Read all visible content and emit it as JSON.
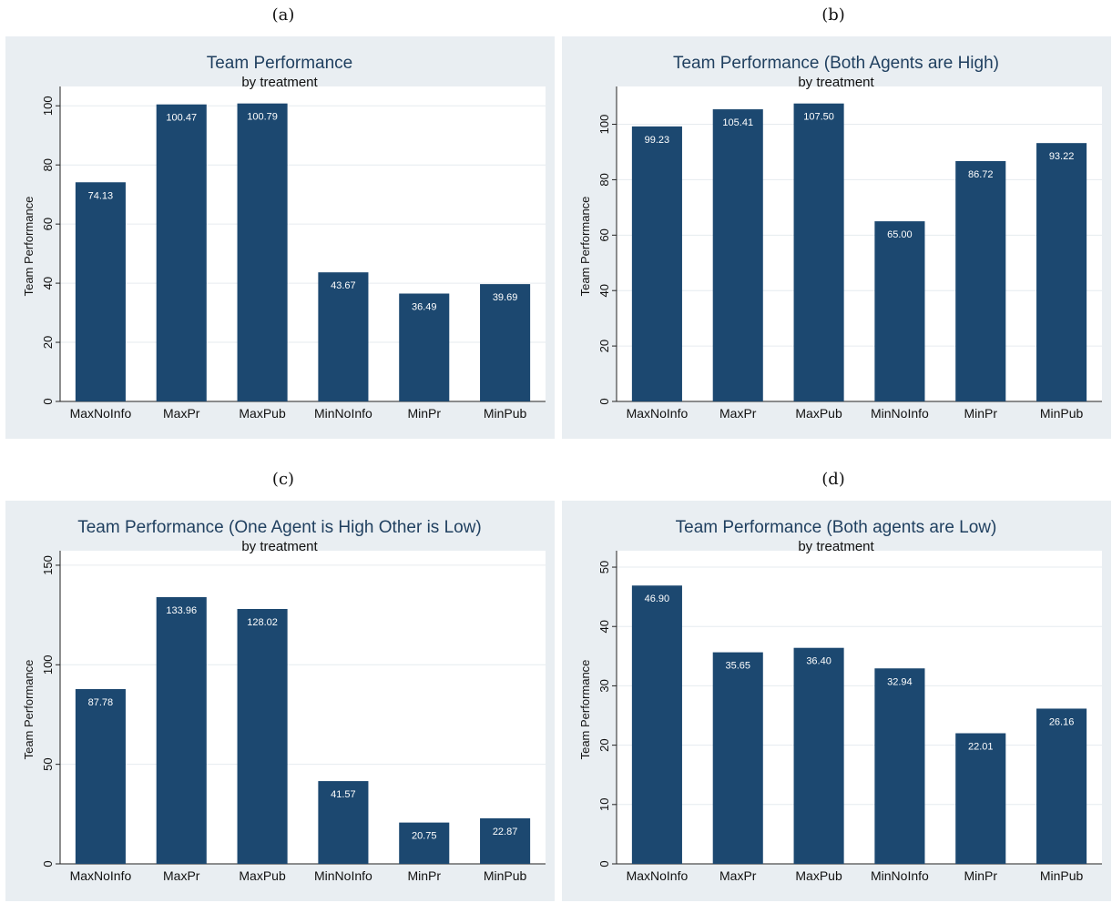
{
  "panel_labels": [
    "(a)",
    "(b)",
    "(c)",
    "(d)"
  ],
  "chart_data": [
    {
      "type": "bar",
      "title": "Team Performance",
      "subtitle": "by treatment",
      "ylabel": "Team Performance",
      "xlabel": "",
      "categories": [
        "MaxNoInfo",
        "MaxPr",
        "MaxPub",
        "MinNoInfo",
        "MinPr",
        "MinPub"
      ],
      "values": [
        74.13,
        100.47,
        100.79,
        43.67,
        36.49,
        39.69
      ],
      "value_labels": [
        "74.13",
        "100.47",
        "100.79",
        "43.67",
        "36.49",
        "39.69"
      ],
      "yticks": [
        0,
        20,
        40,
        60,
        80,
        100
      ],
      "ylim": [
        0,
        105
      ],
      "grid": true,
      "bar_color": "#1c4870"
    },
    {
      "type": "bar",
      "title": "Team Performance (Both Agents are High)",
      "subtitle": "by treatment",
      "ylabel": "Team Performance",
      "xlabel": "",
      "categories": [
        "MaxNoInfo",
        "MaxPr",
        "MaxPub",
        "MinNoInfo",
        "MinPr",
        "MinPub"
      ],
      "values": [
        99.23,
        105.41,
        107.5,
        65.0,
        86.72,
        93.22
      ],
      "value_labels": [
        "99.23",
        "105.41",
        "107.50",
        "65.00",
        "86.72",
        "93.22"
      ],
      "yticks": [
        0,
        20,
        40,
        60,
        80,
        100
      ],
      "ylim": [
        0,
        112
      ],
      "grid": true,
      "bar_color": "#1c4870"
    },
    {
      "type": "bar",
      "title": "Team Performance (One Agent is High Other is Low)",
      "subtitle": "by treatment",
      "ylabel": "Team Performance",
      "xlabel": "",
      "categories": [
        "MaxNoInfo",
        "MaxPr",
        "MaxPub",
        "MinNoInfo",
        "MinPr",
        "MinPub"
      ],
      "values": [
        87.78,
        133.96,
        128.02,
        41.57,
        20.75,
        22.87
      ],
      "value_labels": [
        "87.78",
        "133.96",
        "128.02",
        "41.57",
        "20.75",
        "22.87"
      ],
      "yticks": [
        0,
        50,
        100,
        150
      ],
      "ylim": [
        0,
        155
      ],
      "grid": true,
      "bar_color": "#1c4870"
    },
    {
      "type": "bar",
      "title": "Team Performance (Both agents are Low)",
      "subtitle": "by treatment",
      "ylabel": "Team Performance",
      "xlabel": "",
      "categories": [
        "MaxNoInfo",
        "MaxPr",
        "MaxPub",
        "MinNoInfo",
        "MinPr",
        "MinPub"
      ],
      "values": [
        46.9,
        35.65,
        36.4,
        32.94,
        22.01,
        26.16
      ],
      "value_labels": [
        "46.90",
        "35.65",
        "36.40",
        "32.94",
        "22.01",
        "26.16"
      ],
      "yticks": [
        0,
        10,
        20,
        30,
        40,
        50
      ],
      "ylim": [
        0,
        52
      ],
      "grid": true,
      "bar_color": "#1c4870"
    }
  ]
}
